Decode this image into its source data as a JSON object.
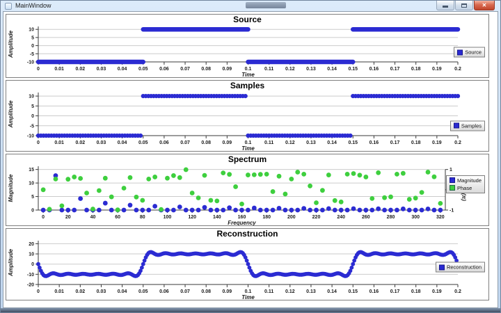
{
  "window": {
    "title": "MainWindow",
    "controls": {
      "minimize": "",
      "maximize": "",
      "close": "✕"
    }
  },
  "theme": {
    "series_blue": "#2b2bd2",
    "series_green": "#3ecf3e",
    "grid": "#cbcbcb",
    "axis": "#3a3a3a",
    "titlebar_top": "#dcebfa",
    "titlebar_bottom": "#bfd5ee"
  },
  "chart_data": [
    {
      "type": "segments",
      "title": "Source",
      "xlabel": "Time",
      "ylabel": "Amplitude",
      "x_domain": [
        0,
        0.2
      ],
      "y_domain": [
        -10,
        11.8
      ],
      "x_tick_vals": [
        0,
        0.01,
        0.02,
        0.03,
        0.04,
        0.05,
        0.06,
        0.07,
        0.08,
        0.09,
        0.1,
        0.11,
        0.12,
        0.13,
        0.14,
        0.15,
        0.16,
        0.17,
        0.18,
        0.19,
        0.2
      ],
      "x_tick_labels": [
        "0",
        "0.01",
        "0.02",
        "0.03",
        "0.04",
        "0.05",
        "0.06",
        "0.07",
        "0.08",
        "0.09",
        "0.1",
        "0.11",
        "0.12",
        "0.13",
        "0.14",
        "0.15",
        "0.16",
        "0.17",
        "0.18",
        "0.19",
        "0.2"
      ],
      "y_tick_vals": [
        10,
        5,
        0,
        -5,
        -10
      ],
      "y_tick_labels": [
        "10",
        "5",
        "0",
        "-5",
        "-10"
      ],
      "series": [
        {
          "name": "Source",
          "color": "#2b2bd2",
          "segments": [
            {
              "t0": 0,
              "t1": 0.05,
              "y": -10
            },
            {
              "t0": 0.05,
              "t1": 0.1,
              "y": 10
            },
            {
              "t0": 0.1,
              "t1": 0.15,
              "y": -10
            },
            {
              "t0": 0.15,
              "t1": 0.2,
              "y": 10
            }
          ]
        }
      ],
      "legend": [
        {
          "label": "Source",
          "color": "#2b2bd2"
        }
      ],
      "margins": {
        "l": 46,
        "r": 44,
        "t": 3,
        "b": 22
      }
    },
    {
      "type": "samples",
      "title": "Samples",
      "xlabel": "Time",
      "ylabel": "Amplitude",
      "dt": 0.00125,
      "x_domain": [
        0,
        0.2
      ],
      "y_domain": [
        -10,
        11.8
      ],
      "x_tick_vals": [
        0,
        0.01,
        0.02,
        0.03,
        0.04,
        0.05,
        0.06,
        0.07,
        0.08,
        0.09,
        0.1,
        0.11,
        0.12,
        0.13,
        0.14,
        0.15,
        0.16,
        0.17,
        0.18,
        0.19,
        0.2
      ],
      "x_tick_labels": [
        "0",
        "0.01",
        "0.02",
        "0.03",
        "0.04",
        "0.05",
        "0.06",
        "0.07",
        "0.08",
        "0.09",
        "0.1",
        "0.11",
        "0.12",
        "0.13",
        "0.14",
        "0.15",
        "0.16",
        "0.17",
        "0.18",
        "0.19",
        "0.2"
      ],
      "y_tick_vals": [
        10,
        5,
        0,
        -5,
        -10
      ],
      "y_tick_labels": [
        "10",
        "5",
        "0",
        "-5",
        "-10"
      ],
      "series": [
        {
          "name": "Samples",
          "color": "#2b2bd2",
          "segments": [
            {
              "t0": 0,
              "t1": 0.05,
              "y": -10
            },
            {
              "t0": 0.05,
              "t1": 0.1,
              "y": 10
            },
            {
              "t0": 0.1,
              "t1": 0.15,
              "y": -10
            },
            {
              "t0": 0.15,
              "t1": 0.2,
              "y": 10
            }
          ]
        }
      ],
      "legend": [
        {
          "label": "Samples",
          "color": "#2b2bd2"
        }
      ],
      "margins": {
        "l": 46,
        "r": 44,
        "t": 3,
        "b": 22
      }
    },
    {
      "type": "spectrum",
      "title": "Spectrum",
      "xlabel": "Frequency",
      "ylabel": "Magnitude",
      "ylabel_right": "Phase (π)",
      "x_domain": [
        -4,
        324
      ],
      "y_domain": [
        0,
        16.2
      ],
      "x_tick_vals": [
        0,
        20,
        40,
        60,
        80,
        100,
        120,
        140,
        160,
        180,
        200,
        220,
        240,
        260,
        280,
        300,
        320
      ],
      "x_tick_labels": [
        "0",
        "20",
        "40",
        "60",
        "80",
        "100",
        "120",
        "140",
        "160",
        "180",
        "200",
        "220",
        "240",
        "260",
        "280",
        "300",
        "320"
      ],
      "y_tick_vals": [
        15,
        10,
        5,
        0
      ],
      "y_tick_labels": [
        "15",
        "10",
        "5",
        "0"
      ],
      "right_tick_vals": [
        1,
        0,
        -1
      ],
      "right_tick_labels": [
        "1",
        "0",
        "-1"
      ],
      "phase_map": {
        "offset": 1,
        "scale": 7.5
      },
      "frequencies": [
        0,
        5,
        10,
        15,
        20,
        25,
        30,
        35,
        40,
        45,
        50,
        55,
        60,
        65,
        70,
        75,
        80,
        85,
        90,
        95,
        100,
        105,
        110,
        115,
        120,
        125,
        130,
        135,
        140,
        145,
        150,
        155,
        160,
        165,
        170,
        175,
        180,
        185,
        190,
        195,
        200,
        205,
        210,
        215,
        220,
        225,
        230,
        235,
        240,
        245,
        250,
        255,
        260,
        265,
        270,
        275,
        280,
        285,
        290,
        295,
        300,
        305,
        310,
        315,
        320
      ],
      "magnitude": [
        0,
        0,
        12.73,
        0,
        0,
        0,
        4.24,
        0,
        0,
        0,
        2.55,
        0,
        0,
        0,
        1.82,
        0,
        0,
        0,
        1.41,
        0,
        0,
        0,
        1.16,
        0,
        0,
        0,
        0.98,
        0,
        0,
        0,
        0.85,
        0,
        0,
        0,
        0.75,
        0,
        0,
        0,
        0.67,
        0,
        0,
        0,
        0.61,
        0,
        0,
        0,
        0.55,
        0,
        0,
        0,
        0.51,
        0,
        0,
        0,
        0.47,
        0,
        0,
        0,
        0.44,
        0,
        0,
        0,
        0.41,
        0,
        0
      ],
      "phase": [
        0.0,
        -0.96,
        0.53,
        -0.79,
        0.52,
        0.63,
        0.56,
        -0.16,
        -0.95,
        -0.04,
        0.57,
        -0.35,
        -0.99,
        0.08,
        0.6,
        -0.36,
        -0.52,
        0.53,
        0.63,
        -0.97,
        0.57,
        0.7,
        0.6,
        0.99,
        -0.16,
        -0.4,
        0.71,
        -0.52,
        -0.55,
        0.83,
        0.76,
        0.15,
        -0.7,
        0.73,
        0.74,
        0.76,
        0.77,
        -0.09,
        0.67,
        -0.21,
        0.53,
        0.87,
        0.77,
        0.19,
        -0.64,
        -0.03,
        0.73,
        -0.53,
        -0.6,
        0.77,
        0.8,
        0.72,
        0.63,
        -0.43,
        0.84,
        -0.39,
        -0.35,
        0.77,
        0.81,
        -0.47,
        -0.41,
        -0.13,
        0.87,
        0.64,
        -0.67
      ],
      "series_colors": {
        "magnitude": "#2b2bd2",
        "phase": "#3ecf3e"
      },
      "legend": [
        {
          "label": "Magnitude",
          "color": "#2b2bd2"
        },
        {
          "label": "Phase",
          "color": "#3ecf3e"
        }
      ],
      "margins": {
        "l": 46,
        "r": 62,
        "t": 3,
        "b": 22
      }
    },
    {
      "type": "fourier",
      "title": "Reconstruction",
      "xlabel": "Time",
      "ylabel": "Amplitude",
      "x_domain": [
        0,
        0.2
      ],
      "y_domain": [
        -20,
        23
      ],
      "x_tick_vals": [
        0,
        0.01,
        0.02,
        0.03,
        0.04,
        0.05,
        0.06,
        0.07,
        0.08,
        0.09,
        0.1,
        0.11,
        0.12,
        0.13,
        0.14,
        0.15,
        0.16,
        0.17,
        0.18,
        0.19,
        0.2
      ],
      "x_tick_labels": [
        "0",
        "0.01",
        "0.02",
        "0.03",
        "0.04",
        "0.05",
        "0.06",
        "0.07",
        "0.08",
        "0.09",
        "0.1",
        "0.11",
        "0.12",
        "0.13",
        "0.14",
        "0.15",
        "0.16",
        "0.17",
        "0.18",
        "0.19",
        "0.2"
      ],
      "y_tick_vals": [
        20,
        10,
        0,
        -10,
        -20
      ],
      "y_tick_labels": [
        "20",
        "10",
        "0",
        "-10",
        "-20"
      ],
      "signal": {
        "amplitude": 10,
        "fundamental_hz": 10,
        "harmonics": [
          1,
          3,
          5,
          7,
          9,
          11,
          13
        ],
        "dt": 0.000625,
        "t_end": 0.2,
        "sign": -1
      },
      "series": [
        {
          "name": "Reconstruction",
          "color": "#2b2bd2"
        }
      ],
      "legend": [
        {
          "label": "Reconstruction",
          "color": "#2b2bd2"
        }
      ],
      "margins": {
        "l": 46,
        "r": 44,
        "t": 3,
        "b": 22
      }
    }
  ]
}
